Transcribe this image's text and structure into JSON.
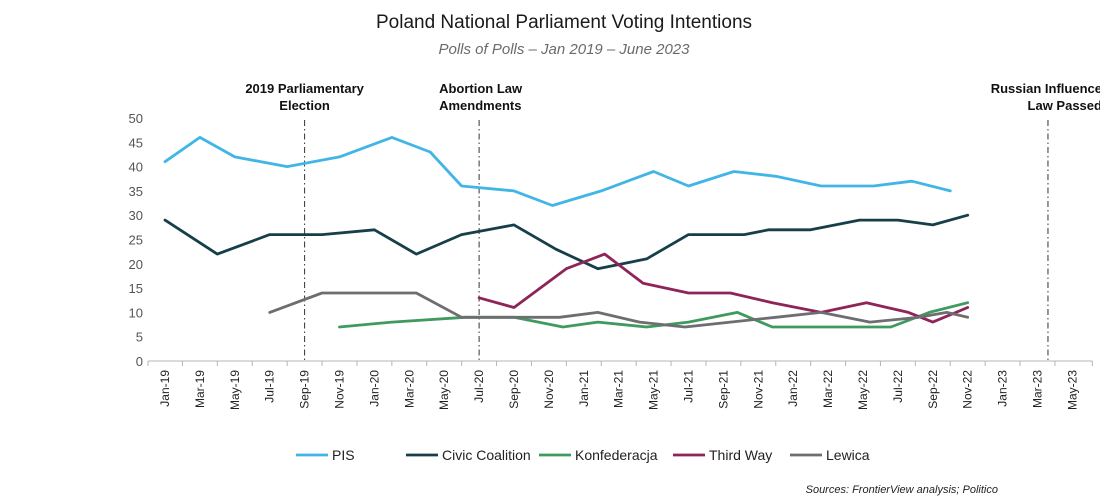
{
  "chart_data": {
    "type": "line",
    "title": "Poland National Parliament Voting Intentions",
    "subtitle": "Polls of Polls – Jan 2019 – June 2023",
    "source": "Sources: FrontierView analysis; Politico",
    "ylim": [
      0,
      50
    ],
    "yticks": [
      0,
      5,
      10,
      15,
      20,
      25,
      30,
      35,
      40,
      45,
      50
    ],
    "x": [
      "Jan-19",
      "Mar-19",
      "May-19",
      "Jul-19",
      "Sep-19",
      "Nov-19",
      "Jan-20",
      "Mar-20",
      "May-20",
      "Jul-20",
      "Sep-20",
      "Nov-20",
      "Jan-21",
      "Mar-21",
      "May-21",
      "Jul-21",
      "Sep-21",
      "Nov-21",
      "Jan-22",
      "Mar-22",
      "May-22",
      "Jul-22",
      "Sep-22",
      "Nov-22",
      "Jan-23",
      "Mar-23",
      "May-23"
    ],
    "series": [
      {
        "name": "PIS",
        "color": "#41b6e6",
        "points": [
          [
            0,
            41
          ],
          [
            1,
            46
          ],
          [
            2,
            42
          ],
          [
            3.5,
            40
          ],
          [
            5,
            42
          ],
          [
            6.5,
            46
          ],
          [
            7.6,
            43
          ],
          [
            8.5,
            36
          ],
          [
            10,
            35
          ],
          [
            11.1,
            32
          ],
          [
            12.5,
            35
          ],
          [
            14,
            39
          ],
          [
            15,
            36
          ],
          [
            16.3,
            39
          ],
          [
            17.5,
            38
          ],
          [
            18.8,
            36
          ],
          [
            20.3,
            36
          ],
          [
            21.4,
            37
          ],
          [
            22.5,
            35
          ]
        ]
      },
      {
        "name": "Civic Coalition",
        "color": "#163f4a",
        "points": [
          [
            0,
            29
          ],
          [
            1.5,
            22
          ],
          [
            3,
            26
          ],
          [
            4.5,
            26
          ],
          [
            6,
            27
          ],
          [
            7.2,
            22
          ],
          [
            8.5,
            26
          ],
          [
            10,
            28
          ],
          [
            11.2,
            23
          ],
          [
            12.4,
            19
          ],
          [
            13.8,
            21
          ],
          [
            15,
            26
          ],
          [
            16.6,
            26
          ],
          [
            17.3,
            27
          ],
          [
            18.5,
            27
          ],
          [
            19.9,
            29
          ],
          [
            21,
            29
          ],
          [
            22,
            28
          ],
          [
            23,
            30
          ]
        ]
      },
      {
        "name": "Konfederacja",
        "color": "#3f9a5f",
        "points": [
          [
            5,
            7
          ],
          [
            6.5,
            8
          ],
          [
            8.6,
            9
          ],
          [
            10,
            9
          ],
          [
            11.4,
            7
          ],
          [
            12.4,
            8
          ],
          [
            13.8,
            7
          ],
          [
            15,
            8
          ],
          [
            16.4,
            10
          ],
          [
            17.4,
            7
          ],
          [
            18.8,
            7
          ],
          [
            19.8,
            7
          ],
          [
            20.8,
            7
          ],
          [
            21.9,
            10
          ],
          [
            23,
            12
          ]
        ]
      },
      {
        "name": "Third Way",
        "color": "#8e2458",
        "points": [
          [
            9,
            13
          ],
          [
            10,
            11
          ],
          [
            11.5,
            19
          ],
          [
            12.6,
            22
          ],
          [
            13.7,
            16
          ],
          [
            15,
            14
          ],
          [
            16.2,
            14
          ],
          [
            17.4,
            12
          ],
          [
            18.8,
            10
          ],
          [
            20.1,
            12
          ],
          [
            21.3,
            10
          ],
          [
            22,
            8
          ],
          [
            23,
            11
          ]
        ]
      },
      {
        "name": "Lewica",
        "color": "#6e6e70",
        "points": [
          [
            3,
            10
          ],
          [
            4.5,
            14
          ],
          [
            6,
            14
          ],
          [
            7.2,
            14
          ],
          [
            8.5,
            9
          ],
          [
            10,
            9
          ],
          [
            11.3,
            9
          ],
          [
            12.4,
            10
          ],
          [
            13.6,
            8
          ],
          [
            14.9,
            7
          ],
          [
            16.2,
            8
          ],
          [
            17.5,
            9
          ],
          [
            18.8,
            10
          ],
          [
            20.2,
            8
          ],
          [
            21.6,
            9
          ],
          [
            22.4,
            10
          ],
          [
            23,
            9
          ]
        ]
      }
    ],
    "annotations": [
      {
        "at": 4,
        "label": [
          "2019 Parliamentary",
          "Election"
        ]
      },
      {
        "at": 9,
        "label": [
          "Abortion Law",
          "Amendments"
        ]
      },
      {
        "at": 25.3,
        "label": [
          "Russian Influence",
          "Law Passed"
        ]
      }
    ],
    "legend": "bottom",
    "grid": false
  }
}
